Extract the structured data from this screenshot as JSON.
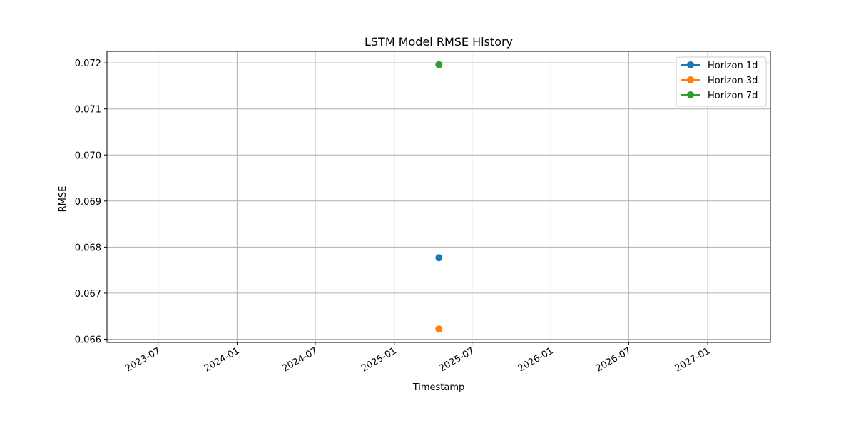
{
  "chart_data": {
    "type": "line",
    "title": "LSTM Model RMSE History",
    "xlabel": "Timestamp",
    "ylabel": "RMSE",
    "x_axis_type": "date",
    "xlim": [
      "2023-03-04",
      "2027-05-27"
    ],
    "ylim": [
      0.06593,
      0.07225
    ],
    "x_ticks": [
      "2023-07-01",
      "2024-01-01",
      "2024-07-01",
      "2025-01-01",
      "2025-07-01",
      "2026-01-01",
      "2026-07-01",
      "2027-01-01"
    ],
    "x_tick_labels": [
      "2023-07",
      "2024-01",
      "2024-07",
      "2025-01",
      "2025-07",
      "2026-01",
      "2026-07",
      "2027-01"
    ],
    "y_ticks": [
      0.066,
      0.067,
      0.068,
      0.069,
      0.07,
      0.071,
      0.072
    ],
    "y_tick_labels": [
      "0.066",
      "0.067",
      "0.068",
      "0.069",
      "0.070",
      "0.071",
      "0.072"
    ],
    "grid": true,
    "legend_position": "top-right",
    "series": [
      {
        "name": "Horizon 1d",
        "color": "#1f77b4",
        "points": [
          {
            "x": "2025-04-15",
            "y": 0.06777
          }
        ]
      },
      {
        "name": "Horizon 3d",
        "color": "#ff7f0e",
        "points": [
          {
            "x": "2025-04-15",
            "y": 0.06622
          }
        ]
      },
      {
        "name": "Horizon 7d",
        "color": "#2ca02c",
        "points": [
          {
            "x": "2025-04-15",
            "y": 0.07196
          }
        ]
      }
    ]
  }
}
